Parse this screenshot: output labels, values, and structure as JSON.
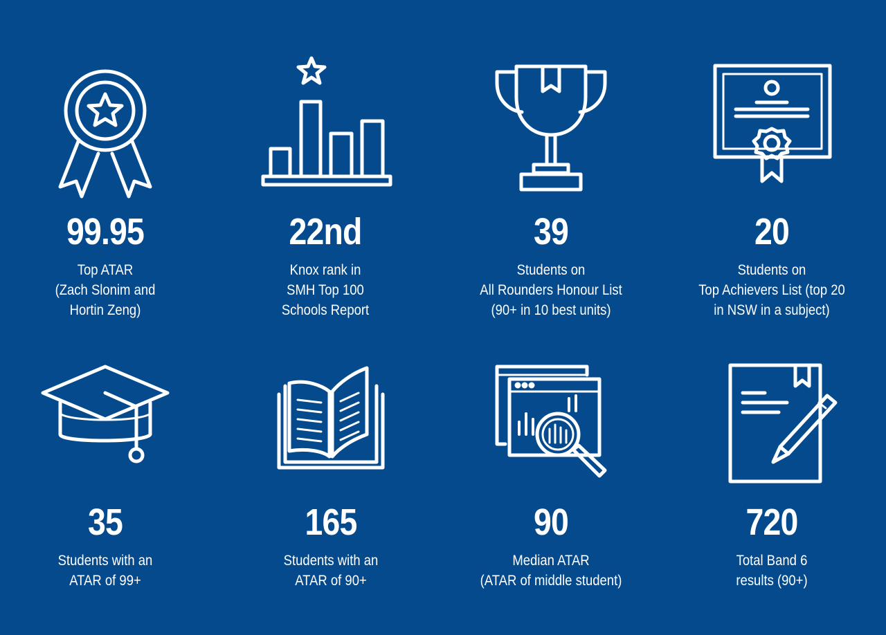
{
  "stats": [
    {
      "icon": "award-ribbon-icon",
      "value": "99.95",
      "lines": [
        "Top ATAR",
        "(Zach Slonim and",
        "Hortin Zeng)"
      ]
    },
    {
      "icon": "bar-chart-star-icon",
      "value": "22nd",
      "lines": [
        "Knox rank in",
        "SMH Top 100",
        "Schools Report"
      ]
    },
    {
      "icon": "trophy-icon",
      "value": "39",
      "lines": [
        "Students on",
        "All Rounders Honour List",
        "(90+ in 10 best units)"
      ]
    },
    {
      "icon": "certificate-icon",
      "value": "20",
      "lines": [
        "Students on",
        "Top Achievers List (top 20",
        "in NSW in a subject)"
      ]
    },
    {
      "icon": "graduation-cap-icon",
      "value": "35",
      "lines": [
        "Students with an",
        "ATAR of 99+"
      ]
    },
    {
      "icon": "open-book-icon",
      "value": "165",
      "lines": [
        "Students with an",
        "ATAR of 90+"
      ]
    },
    {
      "icon": "data-analysis-icon",
      "value": "90",
      "lines": [
        "Median ATAR",
        "(ATAR of middle student)"
      ]
    },
    {
      "icon": "document-pen-icon",
      "value": "720",
      "lines": [
        "Total Band 6",
        "results (90+)"
      ]
    }
  ]
}
